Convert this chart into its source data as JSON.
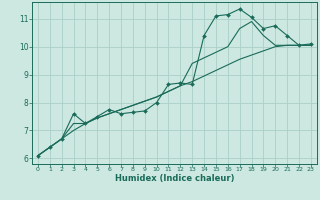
{
  "xlabel": "Humidex (Indice chaleur)",
  "background_color": "#cce8e0",
  "grid_color": "#aacfc8",
  "line_color": "#1a6b5a",
  "xlim": [
    -0.5,
    23.5
  ],
  "ylim": [
    5.8,
    11.6
  ],
  "xticks": [
    0,
    1,
    2,
    3,
    4,
    5,
    6,
    7,
    8,
    9,
    10,
    11,
    12,
    13,
    14,
    15,
    16,
    17,
    18,
    19,
    20,
    21,
    22,
    23
  ],
  "yticks": [
    6,
    7,
    8,
    9,
    10,
    11
  ],
  "line1_x": [
    0,
    1,
    2,
    3,
    4,
    5,
    6,
    7,
    8,
    9,
    10,
    11,
    12,
    13,
    14,
    15,
    16,
    17,
    18,
    19,
    20,
    21,
    22,
    23
  ],
  "line1_y": [
    6.1,
    6.4,
    6.7,
    7.0,
    7.25,
    7.45,
    7.6,
    7.75,
    7.9,
    8.05,
    8.2,
    8.4,
    8.6,
    8.75,
    8.95,
    9.15,
    9.35,
    9.55,
    9.7,
    9.85,
    10.0,
    10.05,
    10.05,
    10.05
  ],
  "line2_x": [
    0,
    1,
    2,
    3,
    4,
    5,
    6,
    7,
    8,
    9,
    10,
    11,
    12,
    13,
    14,
    15,
    16,
    17,
    18,
    19,
    20,
    21,
    22,
    23
  ],
  "line2_y": [
    6.1,
    6.4,
    6.7,
    7.6,
    7.25,
    7.5,
    7.75,
    7.6,
    7.65,
    7.7,
    8.0,
    8.65,
    8.7,
    8.65,
    10.4,
    11.1,
    11.15,
    11.35,
    11.05,
    10.65,
    10.75,
    10.4,
    10.05,
    10.1
  ],
  "line3_x": [
    0,
    1,
    2,
    3,
    4,
    5,
    6,
    7,
    8,
    9,
    10,
    11,
    12,
    13,
    14,
    15,
    16,
    17,
    18,
    19,
    20,
    21,
    22,
    23
  ],
  "line3_y": [
    6.1,
    6.4,
    6.7,
    7.25,
    7.25,
    7.45,
    7.6,
    7.75,
    7.9,
    8.05,
    8.2,
    8.4,
    8.6,
    9.4,
    9.6,
    9.8,
    10.0,
    10.65,
    10.9,
    10.4,
    10.05,
    10.05,
    10.05,
    10.05
  ]
}
